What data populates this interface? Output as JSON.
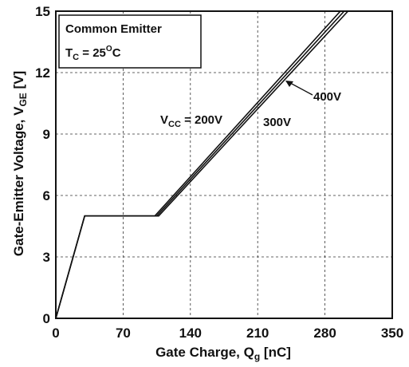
{
  "chart_data": {
    "type": "line",
    "xlabel": "Gate Charge, Q",
    "xlabel_sub": "g",
    "xlabel_unit": " [nC]",
    "ylabel": "Gate-Emitter Voltage, V",
    "ylabel_sub": "GE",
    "ylabel_unit": " [V]",
    "xlim": [
      0,
      350
    ],
    "ylim": [
      0,
      15
    ],
    "x_ticks": [
      0,
      70,
      140,
      210,
      280,
      350
    ],
    "y_ticks": [
      0,
      3,
      6,
      9,
      12,
      15
    ],
    "grid": true,
    "legend": {
      "position": "top-left",
      "line1": "Common Emitter",
      "line2_main": "T",
      "line2_sub": "C",
      "line2_rest": " = 25",
      "line2_sup": "O",
      "line2_end": "C"
    },
    "series": [
      {
        "name": "V_CC = 200V",
        "x": [
          0,
          30,
          103,
          296
        ],
        "y": [
          0,
          5,
          5,
          15
        ]
      },
      {
        "name": "300V",
        "x": [
          0,
          30,
          105,
          300
        ],
        "y": [
          0,
          5,
          5,
          15
        ]
      },
      {
        "name": "400V",
        "x": [
          0,
          30,
          107,
          304
        ],
        "y": [
          0,
          5,
          5,
          15
        ]
      }
    ],
    "annotations": {
      "v200_main": "V",
      "v200_sub": "CC",
      "v200_rest": " = 200V",
      "v300": "300V",
      "v400": "400V"
    }
  }
}
